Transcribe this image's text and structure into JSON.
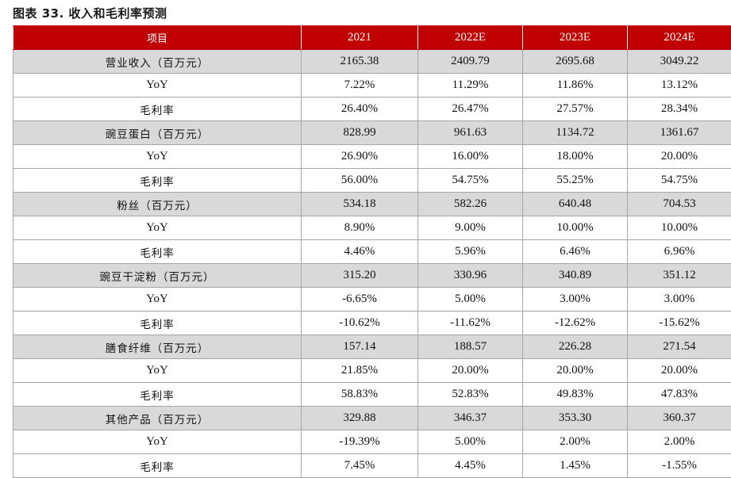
{
  "caption": "图表 33. 收入和毛利率预测",
  "header": [
    "项目",
    "2021",
    "2022E",
    "2023E",
    "2024E"
  ],
  "rows": [
    {
      "label": "营业收入（百万元）",
      "values": [
        "2165.38",
        "2409.79",
        "2695.68",
        "3049.22"
      ],
      "segment": true
    },
    {
      "label": "YoY",
      "values": [
        "7.22%",
        "11.29%",
        "11.86%",
        "13.12%"
      ],
      "segment": false
    },
    {
      "label": "毛利率",
      "values": [
        "26.40%",
        "26.47%",
        "27.57%",
        "28.34%"
      ],
      "segment": false
    },
    {
      "label": "豌豆蛋白（百万元）",
      "values": [
        "828.99",
        "961.63",
        "1134.72",
        "1361.67"
      ],
      "segment": true
    },
    {
      "label": "YoY",
      "values": [
        "26.90%",
        "16.00%",
        "18.00%",
        "20.00%"
      ],
      "segment": false
    },
    {
      "label": "毛利率",
      "values": [
        "56.00%",
        "54.75%",
        "55.25%",
        "54.75%"
      ],
      "segment": false
    },
    {
      "label": "粉丝（百万元）",
      "values": [
        "534.18",
        "582.26",
        "640.48",
        "704.53"
      ],
      "segment": true
    },
    {
      "label": "YoY",
      "values": [
        "8.90%",
        "9.00%",
        "10.00%",
        "10.00%"
      ],
      "segment": false
    },
    {
      "label": "毛利率",
      "values": [
        "4.46%",
        "5.96%",
        "6.46%",
        "6.96%"
      ],
      "segment": false
    },
    {
      "label": "豌豆干淀粉（百万元）",
      "values": [
        "315.20",
        "330.96",
        "340.89",
        "351.12"
      ],
      "segment": true
    },
    {
      "label": "YoY",
      "values": [
        "-6.65%",
        "5.00%",
        "3.00%",
        "3.00%"
      ],
      "segment": false
    },
    {
      "label": "毛利率",
      "values": [
        "-10.62%",
        "-11.62%",
        "-12.62%",
        "-15.62%"
      ],
      "segment": false
    },
    {
      "label": "膳食纤维（百万元）",
      "values": [
        "157.14",
        "188.57",
        "226.28",
        "271.54"
      ],
      "segment": true
    },
    {
      "label": "YoY",
      "values": [
        "21.85%",
        "20.00%",
        "20.00%",
        "20.00%"
      ],
      "segment": false
    },
    {
      "label": "毛利率",
      "values": [
        "58.83%",
        "52.83%",
        "49.83%",
        "47.83%"
      ],
      "segment": false
    },
    {
      "label": "其他产品（百万元）",
      "values": [
        "329.88",
        "346.37",
        "353.30",
        "360.37"
      ],
      "segment": true
    },
    {
      "label": "YoY",
      "values": [
        "-19.39%",
        "5.00%",
        "2.00%",
        "2.00%"
      ],
      "segment": false
    },
    {
      "label": "毛利率",
      "values": [
        "7.45%",
        "4.45%",
        "1.45%",
        "-1.55%"
      ],
      "segment": false
    }
  ]
}
